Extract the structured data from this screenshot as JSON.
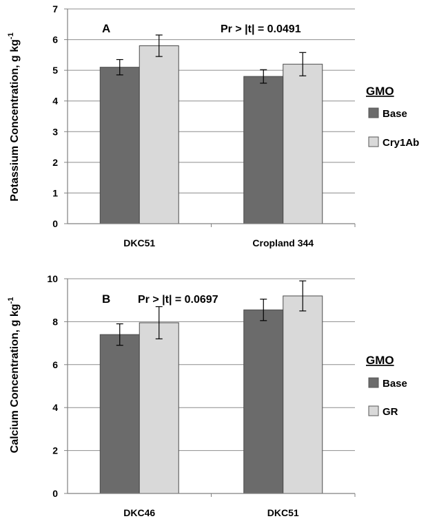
{
  "colors": {
    "base": "#6b6b6b",
    "transgenic": "#d9d9d9",
    "grid": "#8c8c8c",
    "axis": "#808080"
  },
  "chart_data": [
    {
      "type": "bar",
      "panel": "A",
      "annotation": "Pr > |t| = 0.0491",
      "ylabel": "Potassium Concentration, g kg",
      "ylabel_superscript": "-1",
      "categories": [
        "DKC51",
        "Cropland 344"
      ],
      "ylim": [
        0,
        7
      ],
      "yticks": [
        0,
        1,
        2,
        3,
        4,
        5,
        6,
        7
      ],
      "grid": true,
      "legend_title": "GMO",
      "legend_position": "right",
      "series": [
        {
          "name": "Base",
          "values": [
            5.1,
            4.8
          ],
          "errors": [
            0.25,
            0.22
          ]
        },
        {
          "name": "Cry1Ab",
          "values": [
            5.8,
            5.2
          ],
          "errors": [
            0.35,
            0.38
          ]
        }
      ]
    },
    {
      "type": "bar",
      "panel": "B",
      "annotation": "Pr > |t| = 0.0697",
      "ylabel": "Calcium Concentration, g kg",
      "ylabel_superscript": "-1",
      "categories": [
        "DKC46",
        "DKC51"
      ],
      "ylim": [
        0,
        10
      ],
      "yticks": [
        0,
        2,
        4,
        6,
        8,
        10
      ],
      "grid": true,
      "legend_title": "GMO",
      "legend_position": "right",
      "series": [
        {
          "name": "Base",
          "values": [
            7.4,
            8.55
          ],
          "errors": [
            0.5,
            0.5
          ]
        },
        {
          "name": "GR",
          "values": [
            7.95,
            9.2
          ],
          "errors": [
            0.75,
            0.7
          ]
        }
      ]
    }
  ]
}
